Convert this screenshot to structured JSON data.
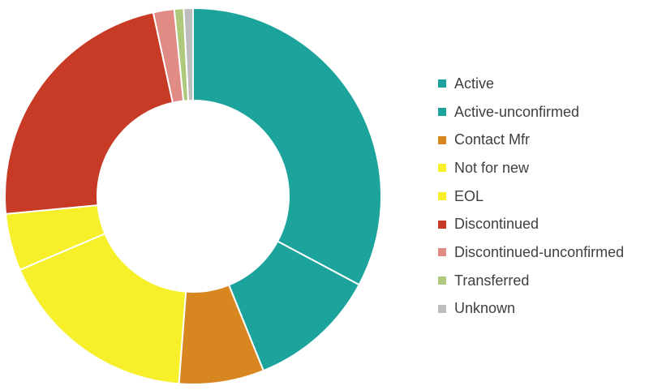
{
  "chart_data": {
    "type": "pie",
    "donut": true,
    "title": "",
    "categories": [
      "Active",
      "Active-unconfirmed",
      "Contact Mfr",
      "Not for new",
      "EOL",
      "Discontinued",
      "Discontinued-unconfirmed",
      "Transferred",
      "Unknown"
    ],
    "values": [
      32.8,
      11.1,
      7.3,
      17.4,
      4.9,
      23.1,
      1.8,
      0.8,
      0.8
    ],
    "colors": [
      "#1ba39c",
      "#1ba39c",
      "#d8861f",
      "#f7ef2a",
      "#f7ef2a",
      "#c63a26",
      "#e08b86",
      "#aec97b",
      "#bdbdbd"
    ],
    "legend_position": "right"
  }
}
